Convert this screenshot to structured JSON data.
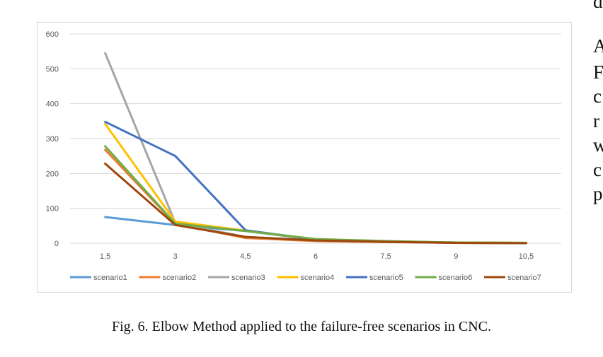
{
  "figure": {
    "caption": "Fig. 6.  Elbow Method applied to the failure-free scenarios in CNC."
  },
  "side_text": {
    "top_fragment": "d",
    "lines": [
      "A",
      "F",
      "c",
      "r",
      "w",
      "c",
      "p"
    ]
  },
  "chart_data": {
    "type": "line",
    "categories": [
      "1,5",
      "3",
      "4,5",
      "6",
      "7,5",
      "9",
      "10,5"
    ],
    "ylim": [
      0,
      600
    ],
    "yticks": [
      0,
      100,
      200,
      300,
      400,
      500,
      600
    ],
    "grid": true,
    "legend_position": "bottom",
    "series": [
      {
        "name": "scenario1",
        "color": "#5b9bd5",
        "values": [
          75,
          52,
          35,
          10,
          5,
          2,
          1
        ]
      },
      {
        "name": "scenario2",
        "color": "#ed7d31",
        "values": [
          268,
          55,
          15,
          6,
          3,
          1,
          0
        ]
      },
      {
        "name": "scenario3",
        "color": "#a5a5a5",
        "values": [
          545,
          58,
          18,
          8,
          4,
          2,
          1
        ]
      },
      {
        "name": "scenario4",
        "color": "#ffc000",
        "values": [
          342,
          62,
          36,
          10,
          5,
          2,
          1
        ]
      },
      {
        "name": "scenario5",
        "color": "#4472c4",
        "values": [
          348,
          250,
          37,
          10,
          4,
          1,
          0
        ]
      },
      {
        "name": "scenario6",
        "color": "#70ad47",
        "values": [
          278,
          56,
          35,
          12,
          6,
          2,
          1
        ]
      },
      {
        "name": "scenario7",
        "color": "#9e480e",
        "values": [
          228,
          52,
          18,
          8,
          4,
          1,
          0
        ]
      }
    ]
  }
}
